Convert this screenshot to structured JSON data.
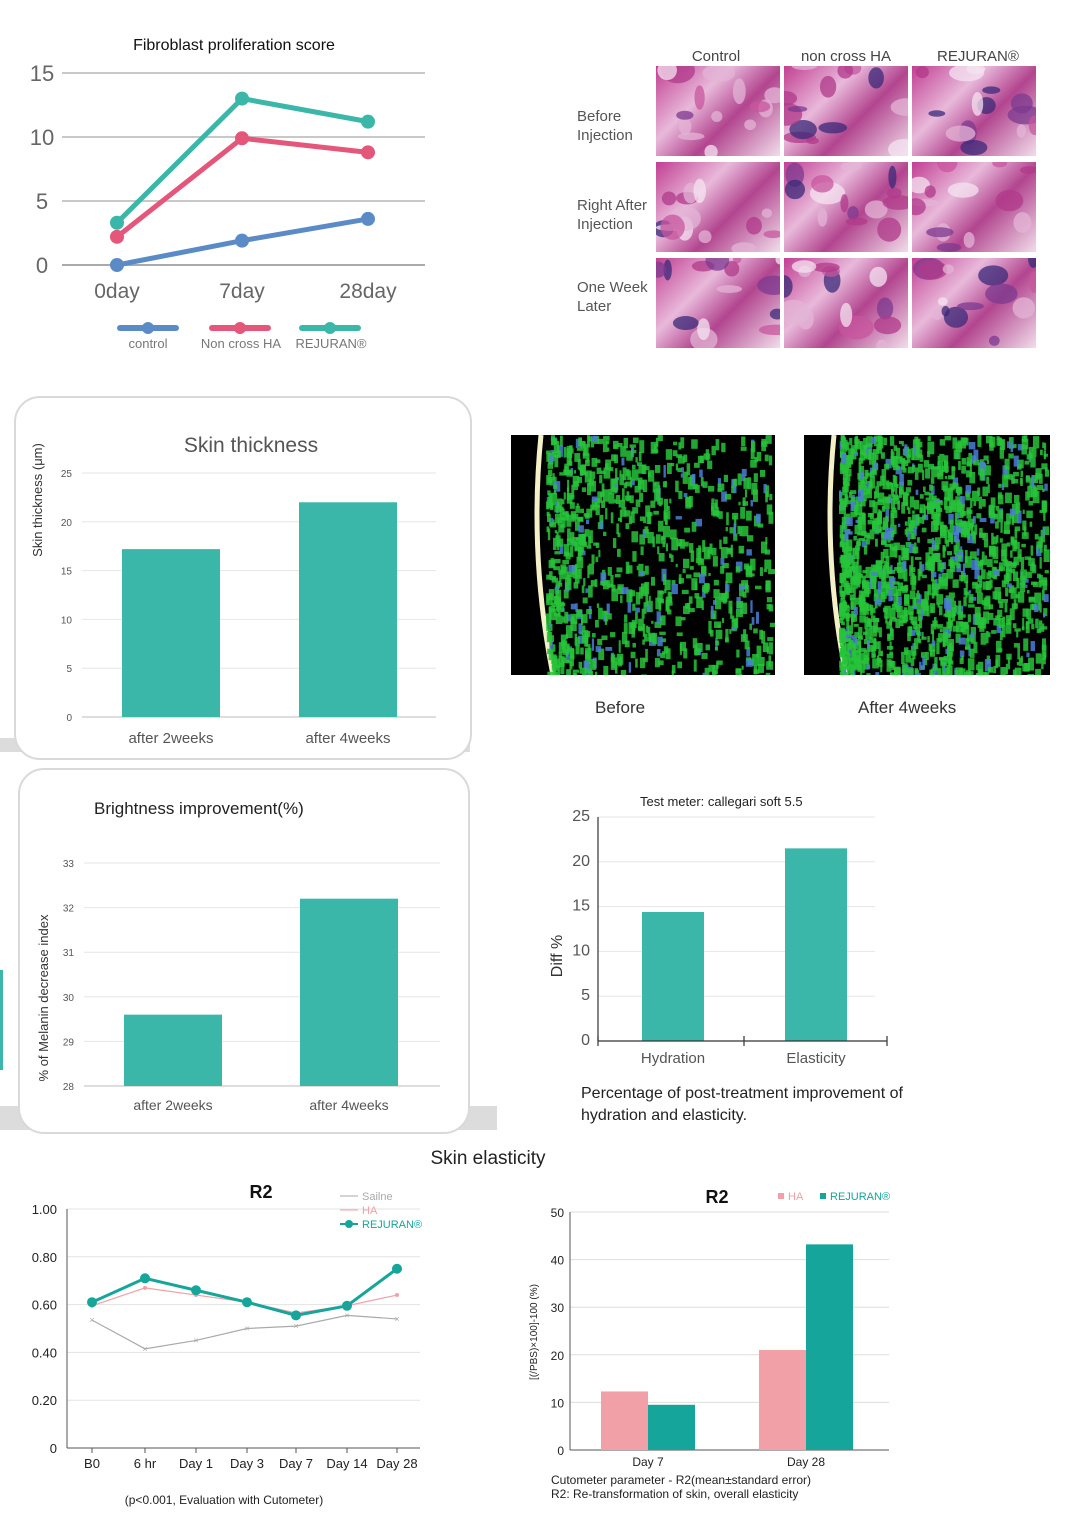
{
  "colors": {
    "teal": "#3bb7a9",
    "teal_dark": "#16a59a",
    "pink": "#e4567a",
    "blue": "#5b8bc7",
    "pink_light": "#f0a0a6",
    "gray": "#aaaaaa",
    "card_border": "#d9d9d9"
  },
  "histology": {
    "columns": [
      "Control",
      "non cross HA",
      "REJURAN®"
    ],
    "rows": [
      {
        "label_line1": "Before",
        "label_line2": "Injection"
      },
      {
        "label_line1": "Right After",
        "label_line2": "Injection"
      },
      {
        "label_line1": "One Week",
        "label_line2": "Later"
      }
    ]
  },
  "ultrasound": {
    "before_label": "Before",
    "after_label": "After 4weeks"
  },
  "section_title": "Skin elasticity",
  "chart_data": [
    {
      "id": "fibroblast",
      "type": "line",
      "title": "Fibroblast proliferation score",
      "x": [
        "0day",
        "7day",
        "28day"
      ],
      "ylim": [
        0,
        15
      ],
      "yticks": [
        0,
        5,
        10,
        15
      ],
      "grid": true,
      "legend": "bottom",
      "series": [
        {
          "name": "control",
          "values": [
            0,
            1.9,
            3.6
          ],
          "color": "#5b8bc7"
        },
        {
          "name": "Non cross HA",
          "values": [
            2.2,
            9.9,
            8.8
          ],
          "color": "#e4567a"
        },
        {
          "name": "REJURAN®",
          "values": [
            3.3,
            13.0,
            11.2
          ],
          "color": "#3bb7a9"
        }
      ]
    },
    {
      "id": "skin_thickness",
      "type": "bar",
      "title": "Skin thickness",
      "ylabel": "Skin thickness (μm)",
      "categories": [
        "after 2weeks",
        "after 4weeks"
      ],
      "values": [
        17.2,
        22
      ],
      "ylim": [
        0,
        25
      ],
      "yticks": [
        0,
        5,
        10,
        15,
        20,
        25
      ],
      "grid": true
    },
    {
      "id": "brightness",
      "type": "bar",
      "title": "Brightness improvement(%)",
      "ylabel": "% of Melanin decrease index",
      "categories": [
        "after 2weeks",
        "after 4weeks"
      ],
      "values": [
        29.6,
        32.2
      ],
      "ylim": [
        28,
        33
      ],
      "yticks": [
        28,
        29,
        30,
        31,
        32,
        33
      ],
      "grid": true
    },
    {
      "id": "hydration",
      "type": "bar",
      "title": "Test meter: callegari soft 5.5",
      "ylabel": "Diff %",
      "categories": [
        "Hydration",
        "Elasticity"
      ],
      "values": [
        14.4,
        21.5
      ],
      "ylim": [
        0,
        25
      ],
      "yticks": [
        0,
        5,
        10,
        15,
        20,
        25
      ],
      "grid": true,
      "caption_line1": "Percentage of post-treatment improvement of",
      "caption_line2": "hydration and elasticity."
    },
    {
      "id": "r2_line",
      "type": "line",
      "title": "R2",
      "x": [
        "B0",
        "6 hr",
        "Day 1",
        "Day 3",
        "Day 7",
        "Day 14",
        "Day 28"
      ],
      "ylim": [
        0,
        1.0
      ],
      "yticks": [
        "0",
        "0.20",
        "0.40",
        "0.60",
        "0.80",
        "1.00"
      ],
      "grid": true,
      "legend": "top-right",
      "footnote": "(p<0.001, Evaluation with Cutometer)",
      "series": [
        {
          "name": "Sailne",
          "values": [
            0.535,
            0.415,
            0.45,
            0.5,
            0.51,
            0.555,
            0.54
          ],
          "color": "#aaaaaa"
        },
        {
          "name": "HA",
          "values": [
            0.595,
            0.67,
            0.64,
            0.61,
            0.565,
            0.595,
            0.64
          ],
          "color": "#f0a0a6"
        },
        {
          "name": "REJURAN®",
          "values": [
            0.61,
            0.71,
            0.66,
            0.61,
            0.555,
            0.595,
            0.75
          ],
          "color": "#16a59a"
        }
      ]
    },
    {
      "id": "r2_bar",
      "type": "bar",
      "title": "R2",
      "ylabel": "[(/PBS)×100]-100 (%)",
      "categories": [
        "Day 7",
        "Day 28"
      ],
      "ylim": [
        0,
        50
      ],
      "yticks": [
        0,
        10,
        20,
        30,
        40,
        50
      ],
      "grid": true,
      "legend": "top-right",
      "series": [
        {
          "name": "HA",
          "values": [
            12.3,
            21.0
          ],
          "color": "#f0a0a6"
        },
        {
          "name": "REJURAN®",
          "values": [
            9.5,
            43.2
          ],
          "color": "#16a59a"
        }
      ],
      "caption_line1": "Cutometer parameter - R2(mean±standard error)",
      "caption_line2": "R2: Re-transformation of skin, overall elasticity"
    }
  ]
}
